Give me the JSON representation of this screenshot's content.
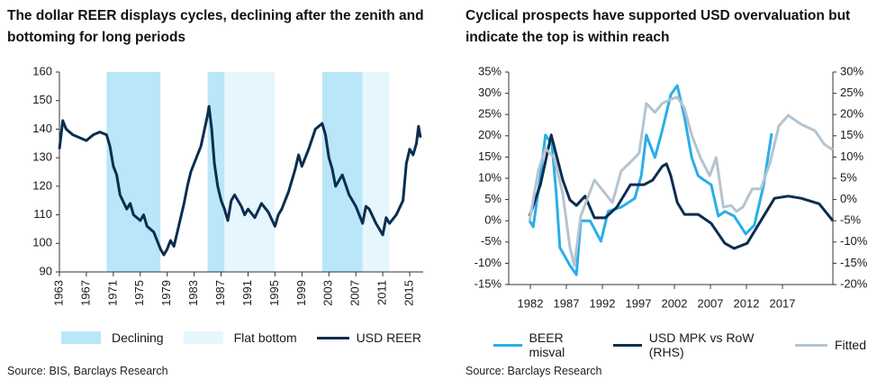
{
  "chart_data": [
    {
      "type": "line",
      "title": "The dollar REER displays cycles, declining after the zenith and bottoming for long periods",
      "source": "Source: BIS, Barclays Research",
      "xlim": [
        1963,
        2017
      ],
      "xticks": [
        1963,
        1967,
        1971,
        1975,
        1979,
        1983,
        1987,
        1991,
        1995,
        1999,
        2003,
        2007,
        2011,
        2015
      ],
      "ylim": [
        90,
        160
      ],
      "yticks": [
        90,
        100,
        110,
        120,
        130,
        140,
        150,
        160
      ],
      "series": [
        {
          "name": "Declining",
          "color": "#b9e6f8",
          "spans": [
            [
              1970,
              1978
            ],
            [
              1985,
              1987.5
            ],
            [
              2002,
              2008
            ]
          ]
        },
        {
          "name": "Flat bottom",
          "color": "#e6f6fd",
          "spans": [
            [
              1987.5,
              1995
            ],
            [
              2008,
              2012
            ]
          ]
        },
        {
          "name": "USD REER",
          "color": "#0b2d4f",
          "x": [
            1963,
            1963.5,
            1964,
            1965,
            1966,
            1967,
            1968,
            1969,
            1970,
            1970.5,
            1971,
            1971.5,
            1972,
            1973,
            1973.5,
            1974,
            1975,
            1975.5,
            1976,
            1977,
            1978,
            1978.5,
            1979,
            1979.5,
            1980,
            1981,
            1981.5,
            1982,
            1982.5,
            1983,
            1984,
            1985,
            1985.2,
            1985.6,
            1986,
            1986.5,
            1987,
            1987.5,
            1988,
            1988.5,
            1989,
            1990,
            1990.5,
            1991,
            1992,
            1993,
            1994,
            1995,
            1995.5,
            1996,
            1997,
            1998,
            1998.5,
            1999,
            2000,
            2001,
            2002,
            2002.5,
            2003,
            2003.5,
            2004,
            2005,
            2006,
            2007,
            2008,
            2008.5,
            2009,
            2010,
            2011,
            2011.5,
            2012,
            2013,
            2014,
            2014.5,
            2015,
            2015.5,
            2016,
            2016.3,
            2016.6
          ],
          "values": [
            133,
            143,
            140,
            138,
            137,
            136,
            138,
            139,
            138,
            134,
            127,
            124,
            117,
            112,
            114,
            110,
            108,
            110,
            106,
            104,
            98,
            96,
            98,
            101,
            99,
            109,
            114,
            120,
            125,
            128,
            134,
            145,
            148,
            140,
            128,
            120,
            115,
            112,
            108,
            115,
            117,
            113,
            110,
            112,
            109,
            114,
            111,
            106,
            110,
            112,
            118,
            126,
            131,
            127,
            133,
            140,
            142,
            138,
            130,
            126,
            120,
            124,
            117,
            113,
            107,
            113,
            112,
            107,
            103,
            109,
            107,
            110,
            115,
            128,
            133,
            131,
            135,
            141,
            137
          ]
        }
      ]
    },
    {
      "type": "line",
      "title": "Cyclical prospects have supported USD overvaluation but indicate the top is within reach",
      "source": "Source: Barclays Research",
      "xlim": [
        1979,
        2024
      ],
      "xticks": [
        1982,
        1987,
        1992,
        1997,
        2002,
        2007,
        2012,
        2017
      ],
      "ylim": [
        -15,
        35
      ],
      "yticks": [
        {
          "value": -15,
          "label": "-15%"
        },
        {
          "value": -10,
          "label": "-10%"
        },
        {
          "value": -5,
          "label": "-5%"
        },
        {
          "value": 0,
          "label": "0%"
        },
        {
          "value": 5,
          "label": "5%"
        },
        {
          "value": 10,
          "label": "10%"
        },
        {
          "value": 15,
          "label": "15%"
        },
        {
          "value": 20,
          "label": "20%"
        },
        {
          "value": 25,
          "label": "25%"
        },
        {
          "value": 30,
          "label": "30%"
        },
        {
          "value": 35,
          "label": "35%"
        }
      ],
      "y2lim": [
        -20,
        30
      ],
      "y2ticks": [
        {
          "value": -20,
          "label": "-20%"
        },
        {
          "value": -15,
          "label": "-15%"
        },
        {
          "value": -10,
          "label": "-10%"
        },
        {
          "value": -5,
          "label": "-5%"
        },
        {
          "value": 0,
          "label": "0%"
        },
        {
          "value": 5,
          "label": "5%"
        },
        {
          "value": 10,
          "label": "10%"
        },
        {
          "value": 15,
          "label": "15%"
        },
        {
          "value": 20,
          "label": "20%"
        },
        {
          "value": 25,
          "label": "25%"
        },
        {
          "value": 30,
          "label": "30%"
        }
      ],
      "series": [
        {
          "name": "BEER misval",
          "color": "#29aee8",
          "x": [
            1981.9,
            1982.4,
            1983.4,
            1984.1,
            1985,
            1985.6,
            1986.1,
            1987.5,
            1988.4,
            1989,
            1990.3,
            1991.8,
            1992.8,
            1994.6,
            1996.5,
            1997.4,
            1998.1,
            1999.3,
            2000.3,
            2001.5,
            2002.4,
            2003.4,
            2004.4,
            2005.3,
            2006.1,
            2007.1,
            2008.1,
            2009,
            2010.3,
            2011.9,
            2013.1,
            2014.4,
            2015.5
          ],
          "values": [
            0,
            -1.4,
            10.6,
            20.2,
            18,
            6.4,
            -6.3,
            -10.5,
            -12.7,
            0,
            0,
            -4.8,
            2.2,
            3.2,
            5.3,
            10.6,
            20.2,
            14.9,
            21.2,
            29.7,
            31.8,
            24.4,
            14.9,
            10.6,
            9.6,
            8.5,
            1.1,
            2.2,
            1.1,
            -3.1,
            -1,
            8.5,
            20.6
          ]
        },
        {
          "name": "USD MPK vs RoW (RHS)",
          "color": "#0b2d4f",
          "axis": "y2",
          "x": [
            1981.9,
            1983.4,
            1984.9,
            1986.5,
            1987.5,
            1988.4,
            1989.6,
            1990.9,
            1992.4,
            1994,
            1995.9,
            1997.8,
            1999,
            2000.3,
            2000.9,
            2001.5,
            2002.4,
            2003.4,
            2005.3,
            2007.1,
            2009,
            2010.3,
            2012.1,
            2014,
            2015.9,
            2017.8,
            2019.6,
            2022.1,
            2024
          ],
          "values": [
            -3.9,
            3.5,
            15.2,
            4.6,
            -0.1,
            -1.4,
            0.8,
            -4.3,
            -4.3,
            -1.8,
            3.5,
            3.5,
            4.6,
            7.8,
            8.4,
            5.6,
            -0.7,
            -3.5,
            -3.5,
            -5.6,
            -10.3,
            -11.5,
            -10.3,
            -5,
            0.3,
            0.8,
            0.3,
            -1,
            -5
          ]
        },
        {
          "name": "Fitted",
          "color": "#b4c4d0",
          "x": [
            1981.9,
            1983.1,
            1984.1,
            1985.3,
            1986.5,
            1987.5,
            1988.1,
            1989,
            1990.9,
            1992.4,
            1993.4,
            1994.6,
            1995.9,
            1997.1,
            1998.1,
            1999.3,
            2000.3,
            2001.5,
            2002.4,
            2003.4,
            2004.4,
            2005.6,
            2006.9,
            2007.8,
            2008.8,
            2009.9,
            2010.6,
            2011.5,
            2012.8,
            2014,
            2015.3,
            2016.5,
            2017.8,
            2019.6,
            2021.5,
            2022.8,
            2024
          ],
          "values": [
            0,
            11.7,
            17,
            14.9,
            6.4,
            -6.3,
            -10.5,
            1.1,
            9.6,
            6.4,
            4.3,
            11.7,
            13.8,
            15.9,
            27.6,
            25.5,
            27.6,
            28.6,
            29.1,
            26.5,
            20.2,
            14.9,
            10.6,
            14.9,
            3.2,
            3.6,
            2.2,
            3.2,
            7.5,
            7.5,
            13.8,
            22.3,
            24.8,
            22.7,
            21.2,
            18,
            16.7
          ]
        }
      ]
    }
  ]
}
